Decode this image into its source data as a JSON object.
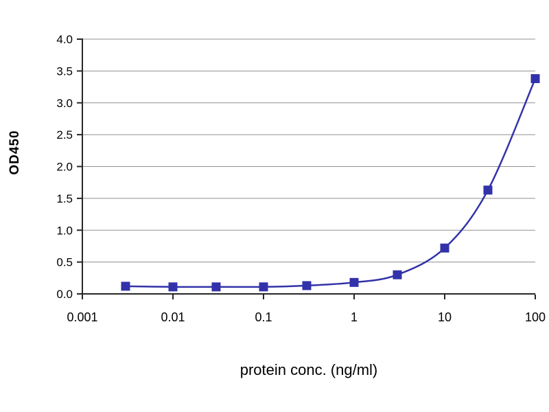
{
  "figure": {
    "background": "#ffffff"
  },
  "chart_data": {
    "type": "line",
    "title": "",
    "xlabel": "protein conc. (ng/ml)",
    "ylabel": "OD450",
    "x_scale": "log",
    "xlim": [
      0.001,
      100
    ],
    "ylim": [
      0,
      4
    ],
    "x_ticks": [
      0.001,
      0.01,
      0.1,
      1,
      10,
      100
    ],
    "x_tick_labels": [
      "0.001",
      "0.01",
      "0.1",
      "1",
      "10",
      "100"
    ],
    "y_ticks": [
      0,
      0.5,
      1,
      1.5,
      2,
      2.5,
      3,
      3.5,
      4
    ],
    "y_tick_labels": [
      "0.0",
      "0.5",
      "1.0",
      "1.5",
      "2.0",
      "2.5",
      "3.0",
      "3.5",
      "4.0"
    ],
    "grid": "horizontal",
    "legend": "none",
    "colors": {
      "series": "#3232aa",
      "grid": "#8f8f8f",
      "axis": "#262626",
      "text": "#000000"
    },
    "series": [
      {
        "name": "OD450",
        "marker": "square",
        "x": [
          0.003,
          0.01,
          0.03,
          0.1,
          0.3,
          1,
          3,
          10,
          30,
          100
        ],
        "y": [
          0.12,
          0.11,
          0.11,
          0.11,
          0.13,
          0.18,
          0.3,
          0.72,
          1.63,
          3.38
        ]
      }
    ]
  }
}
